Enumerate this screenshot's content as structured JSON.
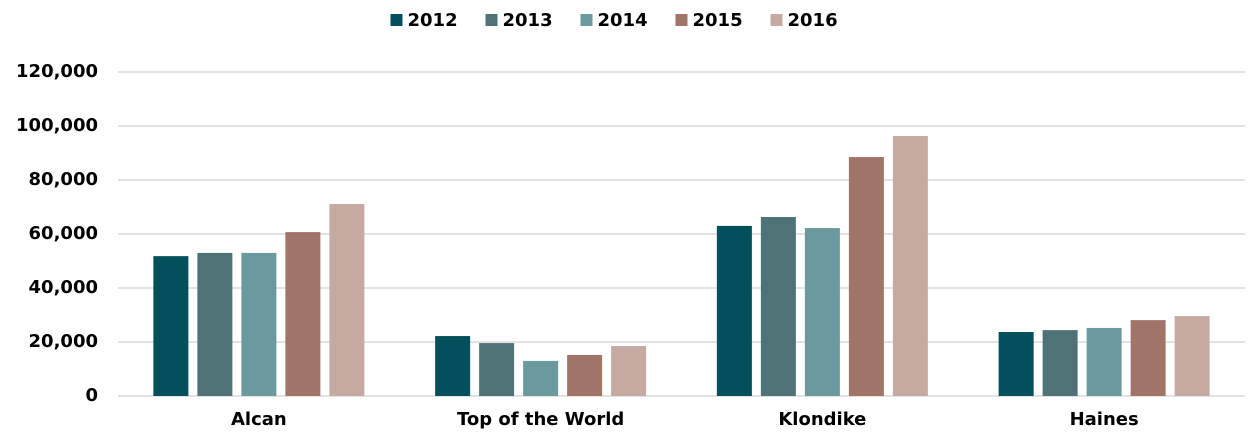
{
  "chart_data": {
    "type": "bar",
    "categories": [
      "Alcan",
      "Top of the World",
      "Klondike",
      "Haines"
    ],
    "series": [
      {
        "name": "2012",
        "color": "#034f5b",
        "values": [
          51800,
          22200,
          63000,
          23700
        ]
      },
      {
        "name": "2013",
        "color": "#4e7276",
        "values": [
          53000,
          19600,
          66300,
          24400
        ]
      },
      {
        "name": "2014",
        "color": "#6a9a9e",
        "values": [
          53000,
          13000,
          62200,
          25200
        ]
      },
      {
        "name": "2015",
        "color": "#a07467",
        "values": [
          60700,
          15200,
          88500,
          28100
        ]
      },
      {
        "name": "2016",
        "color": "#c6aaa2",
        "values": [
          71100,
          18500,
          96300,
          29600
        ]
      }
    ],
    "ylim": [
      0,
      120000
    ],
    "yticks": [
      0,
      {
        "value": 20000,
        "label": "20,000"
      },
      {
        "value": 40000,
        "label": "40,000"
      },
      {
        "value": 60000,
        "label": "60,000"
      },
      {
        "value": 80000,
        "label": "80,000"
      },
      {
        "value": 100000,
        "label": "100,000"
      },
      {
        "value": 120000,
        "label": "120,000"
      }
    ],
    "grid": true,
    "legend": "top"
  }
}
